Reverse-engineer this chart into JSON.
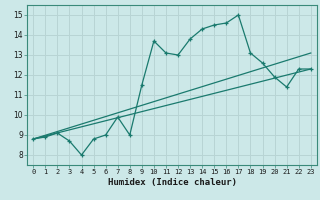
{
  "xlabel": "Humidex (Indice chaleur)",
  "bg_color": "#cce8e8",
  "grid_color": "#b8d4d4",
  "line_color": "#1a7a6e",
  "xlim": [
    -0.5,
    23.5
  ],
  "ylim": [
    7.5,
    15.5
  ],
  "xticks": [
    0,
    1,
    2,
    3,
    4,
    5,
    6,
    7,
    8,
    9,
    10,
    11,
    12,
    13,
    14,
    15,
    16,
    17,
    18,
    19,
    20,
    21,
    22,
    23
  ],
  "yticks": [
    8,
    9,
    10,
    11,
    12,
    13,
    14,
    15
  ],
  "series1_x": [
    0,
    1,
    2,
    3,
    4,
    5,
    6,
    7,
    8,
    9,
    10,
    11,
    12,
    13,
    14,
    15,
    16,
    17,
    18,
    19,
    20,
    21,
    22,
    23
  ],
  "series1_y": [
    8.8,
    8.9,
    9.1,
    8.7,
    8.0,
    8.8,
    9.0,
    9.9,
    9.0,
    11.5,
    13.7,
    13.1,
    13.0,
    13.8,
    14.3,
    14.5,
    14.6,
    15.0,
    13.1,
    12.6,
    11.9,
    11.4,
    12.3,
    12.3
  ],
  "series2_x": [
    0,
    23
  ],
  "series2_y": [
    8.8,
    13.1
  ],
  "series3_x": [
    0,
    23
  ],
  "series3_y": [
    8.8,
    12.3
  ]
}
